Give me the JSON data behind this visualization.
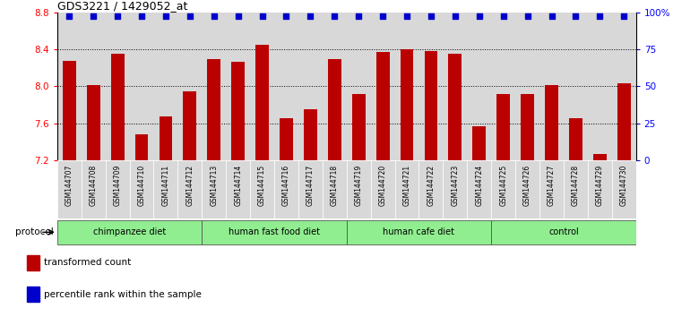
{
  "title": "GDS3221 / 1429052_at",
  "samples": [
    "GSM144707",
    "GSM144708",
    "GSM144709",
    "GSM144710",
    "GSM144711",
    "GSM144712",
    "GSM144713",
    "GSM144714",
    "GSM144715",
    "GSM144716",
    "GSM144717",
    "GSM144718",
    "GSM144719",
    "GSM144720",
    "GSM144721",
    "GSM144722",
    "GSM144723",
    "GSM144724",
    "GSM144725",
    "GSM144726",
    "GSM144727",
    "GSM144728",
    "GSM144729",
    "GSM144730"
  ],
  "values": [
    8.28,
    8.01,
    8.35,
    7.48,
    7.67,
    7.95,
    8.3,
    8.27,
    8.45,
    7.65,
    7.75,
    8.3,
    7.92,
    8.37,
    8.4,
    8.38,
    8.35,
    7.57,
    7.92,
    7.92,
    8.01,
    7.65,
    7.27,
    8.03
  ],
  "groups": [
    {
      "label": "chimpanzee diet",
      "start": 0,
      "end": 6,
      "color": "#90EE90"
    },
    {
      "label": "human fast food diet",
      "start": 6,
      "end": 12,
      "color": "#90EE90"
    },
    {
      "label": "human cafe diet",
      "start": 12,
      "end": 18,
      "color": "#90EE90"
    },
    {
      "label": "control",
      "start": 18,
      "end": 24,
      "color": "#90EE90"
    }
  ],
  "bar_color": "#BB0000",
  "dot_color": "#0000CC",
  "ylim": [
    7.2,
    8.8
  ],
  "y_ticks_left": [
    7.2,
    7.6,
    8.0,
    8.4,
    8.8
  ],
  "y_ticks_right_pct": [
    0,
    25,
    50,
    75,
    100
  ],
  "y_right_labels": [
    "0",
    "25",
    "50",
    "75",
    "100%"
  ],
  "grid_lines": [
    7.6,
    8.0,
    8.4
  ],
  "cell_bg_color": "#d8d8d8",
  "legend_items": [
    {
      "color": "#BB0000",
      "label": "transformed count"
    },
    {
      "color": "#0000CC",
      "label": "percentile rank within the sample"
    }
  ],
  "protocol_label": "protocol"
}
